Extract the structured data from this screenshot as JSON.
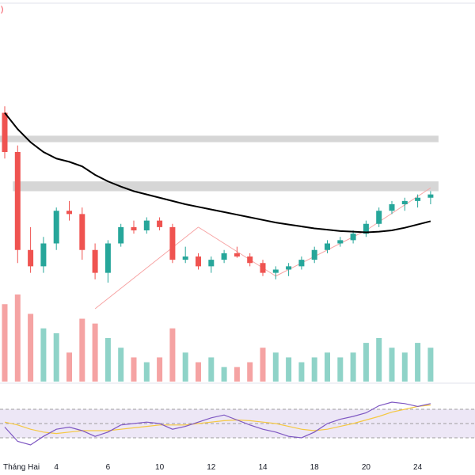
{
  "colors": {
    "up": "#26a69a",
    "down": "#ef5350",
    "vol_up": "#8fd3c8",
    "vol_down": "#f5a3a3",
    "ma": "#000000",
    "zone": "#d6d6d6",
    "trend": "#f7a5a5",
    "rsi": "#7e57c2",
    "rsi_ma": "#f5c842",
    "rsi_band": "#ede7f6",
    "rsi_dash": "#9e9e9e"
  },
  "top_marker": ")",
  "chart_data": {
    "type": "candlestick",
    "price_ylim": [
      85,
      125
    ],
    "x_tick_labels": [
      {
        "i": 0,
        "label": "Tháng Hai"
      },
      {
        "i": 4,
        "label": "4"
      },
      {
        "i": 8,
        "label": "6"
      },
      {
        "i": 12,
        "label": "10"
      },
      {
        "i": 16,
        "label": "12"
      },
      {
        "i": 20,
        "label": "14"
      },
      {
        "i": 24,
        "label": "18"
      },
      {
        "i": 28,
        "label": "20"
      },
      {
        "i": 32,
        "label": "24"
      }
    ],
    "candles": [
      {
        "o": 115.0,
        "h": 116.0,
        "l": 108.0,
        "c": 109.0,
        "v": 80
      },
      {
        "o": 109.0,
        "h": 110.0,
        "l": 92.0,
        "c": 94.0,
        "v": 90
      },
      {
        "o": 94.0,
        "h": 97.5,
        "l": 90.5,
        "c": 91.5,
        "v": 70
      },
      {
        "o": 91.5,
        "h": 96.0,
        "l": 90.5,
        "c": 95.0,
        "v": 55
      },
      {
        "o": 95.0,
        "h": 100.5,
        "l": 94.0,
        "c": 100.0,
        "v": 50
      },
      {
        "o": 100.0,
        "h": 101.5,
        "l": 98.5,
        "c": 99.5,
        "v": 30
      },
      {
        "o": 99.5,
        "h": 100.5,
        "l": 92.5,
        "c": 94.0,
        "v": 65
      },
      {
        "o": 94.0,
        "h": 95.0,
        "l": 89.5,
        "c": 90.5,
        "v": 60
      },
      {
        "o": 90.5,
        "h": 95.5,
        "l": 89.0,
        "c": 95.0,
        "v": 45
      },
      {
        "o": 95.0,
        "h": 98.0,
        "l": 94.5,
        "c": 97.5,
        "v": 35
      },
      {
        "o": 97.5,
        "h": 98.5,
        "l": 96.5,
        "c": 97.0,
        "v": 25
      },
      {
        "o": 97.0,
        "h": 99.0,
        "l": 96.5,
        "c": 98.5,
        "v": 20
      },
      {
        "o": 98.5,
        "h": 99.0,
        "l": 97.0,
        "c": 97.5,
        "v": 25
      },
      {
        "o": 97.5,
        "h": 98.0,
        "l": 92.0,
        "c": 92.5,
        "v": 55
      },
      {
        "o": 92.5,
        "h": 94.5,
        "l": 92.0,
        "c": 93.0,
        "v": 30
      },
      {
        "o": 93.0,
        "h": 93.5,
        "l": 91.0,
        "c": 91.5,
        "v": 20
      },
      {
        "o": 91.5,
        "h": 93.0,
        "l": 90.5,
        "c": 92.5,
        "v": 25
      },
      {
        "o": 92.5,
        "h": 94.0,
        "l": 92.0,
        "c": 93.5,
        "v": 15
      },
      {
        "o": 93.5,
        "h": 94.5,
        "l": 92.8,
        "c": 93.0,
        "v": 15
      },
      {
        "o": 93.0,
        "h": 93.5,
        "l": 91.5,
        "c": 92.0,
        "v": 20
      },
      {
        "o": 92.0,
        "h": 92.5,
        "l": 90.0,
        "c": 90.5,
        "v": 35
      },
      {
        "o": 90.5,
        "h": 91.5,
        "l": 89.5,
        "c": 91.0,
        "v": 30
      },
      {
        "o": 91.0,
        "h": 92.0,
        "l": 90.0,
        "c": 91.5,
        "v": 25
      },
      {
        "o": 91.5,
        "h": 93.0,
        "l": 91.0,
        "c": 92.5,
        "v": 20
      },
      {
        "o": 92.5,
        "h": 94.5,
        "l": 92.0,
        "c": 94.0,
        "v": 25
      },
      {
        "o": 94.0,
        "h": 95.5,
        "l": 93.5,
        "c": 95.0,
        "v": 30
      },
      {
        "o": 95.0,
        "h": 96.0,
        "l": 94.5,
        "c": 95.5,
        "v": 25
      },
      {
        "o": 95.5,
        "h": 97.0,
        "l": 95.0,
        "c": 96.5,
        "v": 30
      },
      {
        "o": 96.5,
        "h": 98.5,
        "l": 96.0,
        "c": 98.0,
        "v": 40
      },
      {
        "o": 98.0,
        "h": 100.5,
        "l": 97.5,
        "c": 100.0,
        "v": 45
      },
      {
        "o": 100.0,
        "h": 101.5,
        "l": 99.5,
        "c": 101.0,
        "v": 35
      },
      {
        "o": 101.0,
        "h": 102.0,
        "l": 100.0,
        "c": 101.5,
        "v": 30
      },
      {
        "o": 101.5,
        "h": 102.5,
        "l": 100.5,
        "c": 102.0,
        "v": 40
      },
      {
        "o": 102.0,
        "h": 103.0,
        "l": 101.0,
        "c": 102.5,
        "v": 35
      }
    ],
    "ma_series": [
      115.0,
      112.5,
      110.5,
      109.0,
      108.0,
      107.5,
      106.8,
      105.5,
      104.5,
      103.7,
      103.0,
      102.5,
      102.0,
      101.5,
      101.0,
      100.6,
      100.2,
      99.8,
      99.4,
      99.0,
      98.6,
      98.2,
      97.9,
      97.6,
      97.3,
      97.1,
      96.9,
      96.8,
      96.7,
      96.8,
      97.0,
      97.4,
      97.9,
      98.4
    ],
    "resistance_zones": [
      {
        "low": 110.5,
        "high": 111.5,
        "i_start": 0,
        "i_end": 33
      },
      {
        "low": 103.0,
        "high": 104.5,
        "i_start": 1,
        "i_end": 33
      }
    ],
    "trendlines": [
      {
        "i1": 7,
        "v1": 85.0,
        "i2": 15,
        "v2": 97.5
      },
      {
        "i1": 15,
        "v1": 97.5,
        "i2": 21,
        "v2": 90.0
      },
      {
        "i1": 21,
        "v1": 90.0,
        "i2": 28,
        "v2": 97.0
      },
      {
        "i1": 28,
        "v1": 97.0,
        "i2": 33,
        "v2": 103.5
      }
    ],
    "rsi_ylim": [
      0,
      100
    ],
    "rsi_levels": [
      70,
      50,
      30
    ],
    "rsi": [
      45,
      25,
      20,
      32,
      42,
      45,
      40,
      32,
      38,
      48,
      50,
      52,
      50,
      42,
      46,
      52,
      58,
      62,
      55,
      48,
      42,
      38,
      32,
      30,
      38,
      50,
      56,
      60,
      65,
      75,
      80,
      78,
      74,
      78
    ],
    "rsi_ma": [
      52,
      48,
      42,
      38,
      36,
      38,
      40,
      40,
      40,
      42,
      44,
      46,
      48,
      48,
      48,
      50,
      52,
      54,
      55,
      54,
      52,
      50,
      46,
      42,
      40,
      42,
      46,
      50,
      55,
      60,
      66,
      70,
      74,
      76
    ]
  }
}
